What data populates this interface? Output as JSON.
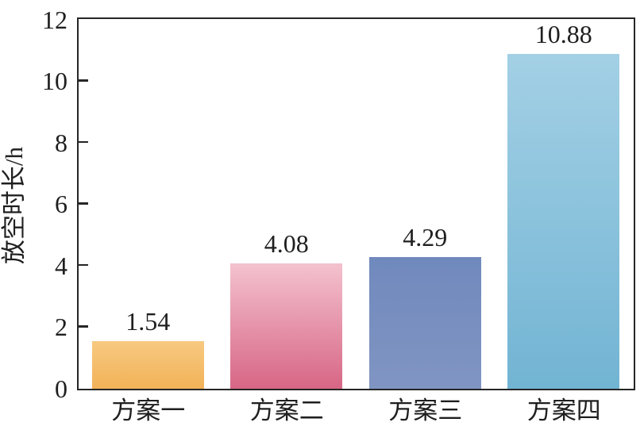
{
  "chart_data": {
    "type": "bar",
    "title": "",
    "categories": [
      "方案一",
      "方案二",
      "方案三",
      "方案四"
    ],
    "values": [
      1.54,
      4.08,
      4.29,
      10.88
    ],
    "value_labels": [
      "1.54",
      "4.08",
      "4.29",
      "10.88"
    ],
    "xlabel": "",
    "ylabel": "放空时长/h",
    "ylim": [
      0,
      12
    ],
    "yticks": [
      0,
      2,
      4,
      6,
      8,
      10,
      12
    ],
    "grid": false,
    "legend": "none",
    "tick_direction": "in",
    "bar_colors": [
      {
        "top": "#f7c981",
        "bottom": "#f2b258"
      },
      {
        "top": "#f4c2cf",
        "bottom": "#d76685"
      },
      {
        "top": "#7089bd",
        "bottom": "#8095c2"
      },
      {
        "top": "#a3d0e5",
        "bottom": "#72b4d3"
      }
    ],
    "axis_color": "#262626",
    "text_color": "#1f1f1f",
    "background_color": "#ffffff"
  }
}
